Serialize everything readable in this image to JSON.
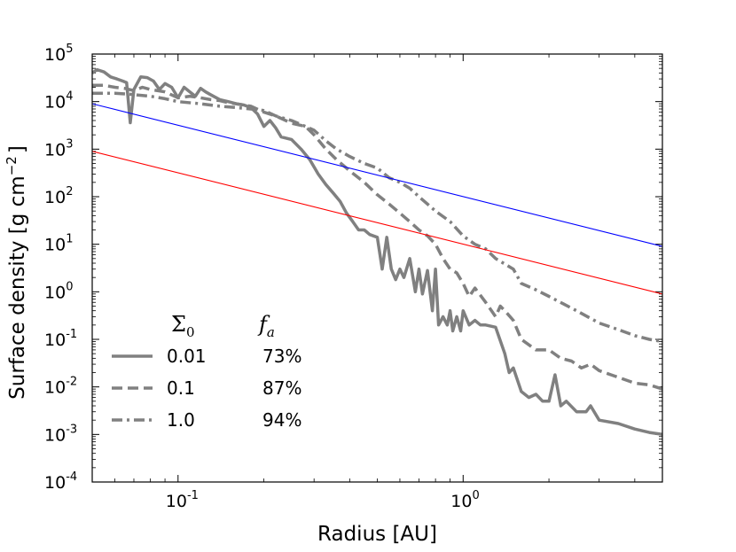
{
  "chart_data": {
    "type": "line",
    "xlabel": "Radius [AU]",
    "ylabel": "Surface density [g cm",
    "ylabel_sup": "−2",
    "ylabel_end": "]",
    "xscale": "log",
    "yscale": "log",
    "xlim": [
      0.05,
      5.0
    ],
    "ylim": [
      0.0001,
      100000
    ],
    "xticks": [
      {
        "value": 0.1,
        "base": "10",
        "exp": "-1"
      },
      {
        "value": 1.0,
        "base": "10",
        "exp": "0"
      }
    ],
    "yticks": [
      {
        "value": 100000,
        "base": "10",
        "exp": "5"
      },
      {
        "value": 10000,
        "base": "10",
        "exp": "4"
      },
      {
        "value": 1000,
        "base": "10",
        "exp": "3"
      },
      {
        "value": 100,
        "base": "10",
        "exp": "2"
      },
      {
        "value": 10,
        "base": "10",
        "exp": "1"
      },
      {
        "value": 1,
        "base": "10",
        "exp": "0"
      },
      {
        "value": 0.1,
        "base": "10",
        "exp": "-1"
      },
      {
        "value": 0.01,
        "base": "10",
        "exp": "-2"
      },
      {
        "value": 0.001,
        "base": "10",
        "exp": "-3"
      },
      {
        "value": 0.0001,
        "base": "10",
        "exp": "-4"
      }
    ],
    "legend": {
      "placement": "lower-left",
      "head_sigma": "Σ",
      "head_sigma_sub": "0",
      "head_f": "f",
      "head_f_sub": "a"
    },
    "series": [
      {
        "label": "0.01",
        "fa": "73%",
        "style": "solid",
        "color": "#808080",
        "points": [
          [
            0.05,
            40000
          ],
          [
            0.052,
            47000
          ],
          [
            0.055,
            42000
          ],
          [
            0.058,
            33000
          ],
          [
            0.061,
            30000
          ],
          [
            0.064,
            27000
          ],
          [
            0.066,
            25000
          ],
          [
            0.068,
            3600
          ],
          [
            0.07,
            18000
          ],
          [
            0.074,
            33000
          ],
          [
            0.078,
            32000
          ],
          [
            0.082,
            27000
          ],
          [
            0.086,
            18000
          ],
          [
            0.09,
            24000
          ],
          [
            0.095,
            20000
          ],
          [
            0.1,
            12000
          ],
          [
            0.105,
            20000
          ],
          [
            0.11,
            16000
          ],
          [
            0.115,
            13000
          ],
          [
            0.12,
            19000
          ],
          [
            0.125,
            16000
          ],
          [
            0.13,
            14000
          ],
          [
            0.14,
            11000
          ],
          [
            0.15,
            10000
          ],
          [
            0.16,
            9000
          ],
          [
            0.17,
            8500
          ],
          [
            0.18,
            7500
          ],
          [
            0.19,
            5500
          ],
          [
            0.2,
            3000
          ],
          [
            0.21,
            4000
          ],
          [
            0.22,
            2800
          ],
          [
            0.23,
            1800
          ],
          [
            0.25,
            1600
          ],
          [
            0.27,
            1000
          ],
          [
            0.29,
            600
          ],
          [
            0.31,
            300
          ],
          [
            0.33,
            180
          ],
          [
            0.35,
            120
          ],
          [
            0.37,
            80
          ],
          [
            0.39,
            45
          ],
          [
            0.41,
            30
          ],
          [
            0.43,
            20
          ],
          [
            0.45,
            20
          ],
          [
            0.47,
            16
          ],
          [
            0.5,
            14
          ],
          [
            0.52,
            3
          ],
          [
            0.54,
            14
          ],
          [
            0.56,
            3
          ],
          [
            0.58,
            1.8
          ],
          [
            0.6,
            3
          ],
          [
            0.62,
            2
          ],
          [
            0.65,
            5
          ],
          [
            0.68,
            1
          ],
          [
            0.7,
            3
          ],
          [
            0.72,
            0.9
          ],
          [
            0.75,
            2.8
          ],
          [
            0.78,
            0.4
          ],
          [
            0.8,
            3
          ],
          [
            0.82,
            0.2
          ],
          [
            0.85,
            0.3
          ],
          [
            0.88,
            0.2
          ],
          [
            0.9,
            0.4
          ],
          [
            0.92,
            0.15
          ],
          [
            0.95,
            0.3
          ],
          [
            0.98,
            0.15
          ],
          [
            1.0,
            0.4
          ],
          [
            1.05,
            0.2
          ],
          [
            1.1,
            0.25
          ],
          [
            1.15,
            0.2
          ],
          [
            1.2,
            0.2
          ],
          [
            1.3,
            0.18
          ],
          [
            1.4,
            0.05
          ],
          [
            1.45,
            0.02
          ],
          [
            1.5,
            0.025
          ],
          [
            1.6,
            0.008
          ],
          [
            1.7,
            0.006
          ],
          [
            1.8,
            0.007
          ],
          [
            1.9,
            0.005
          ],
          [
            2.0,
            0.005
          ],
          [
            2.1,
            0.018
          ],
          [
            2.2,
            0.004
          ],
          [
            2.3,
            0.005
          ],
          [
            2.5,
            0.003
          ],
          [
            2.7,
            0.003
          ],
          [
            2.8,
            0.004
          ],
          [
            3.0,
            0.002
          ],
          [
            3.5,
            0.0017
          ],
          [
            4.0,
            0.0013
          ],
          [
            4.5,
            0.0011
          ],
          [
            5.0,
            0.001
          ]
        ]
      },
      {
        "label": "0.1",
        "fa": "87%",
        "style": "dashed",
        "color": "#808080",
        "points": [
          [
            0.05,
            22000
          ],
          [
            0.055,
            22000
          ],
          [
            0.06,
            20000
          ],
          [
            0.065,
            19000
          ],
          [
            0.07,
            17000
          ],
          [
            0.075,
            20000
          ],
          [
            0.08,
            18000
          ],
          [
            0.09,
            16000
          ],
          [
            0.1,
            12000
          ],
          [
            0.11,
            13000
          ],
          [
            0.12,
            12000
          ],
          [
            0.13,
            11000
          ],
          [
            0.14,
            10500
          ],
          [
            0.15,
            9500
          ],
          [
            0.16,
            9000
          ],
          [
            0.18,
            8000
          ],
          [
            0.2,
            6000
          ],
          [
            0.22,
            5000
          ],
          [
            0.25,
            3500
          ],
          [
            0.28,
            3000
          ],
          [
            0.3,
            2000
          ],
          [
            0.33,
            1000
          ],
          [
            0.36,
            600
          ],
          [
            0.4,
            350
          ],
          [
            0.45,
            200
          ],
          [
            0.5,
            110
          ],
          [
            0.55,
            70
          ],
          [
            0.6,
            45
          ],
          [
            0.65,
            30
          ],
          [
            0.7,
            20
          ],
          [
            0.75,
            15
          ],
          [
            0.8,
            10
          ],
          [
            0.85,
            5
          ],
          [
            0.9,
            3
          ],
          [
            0.95,
            2.5
          ],
          [
            1.0,
            1.5
          ],
          [
            1.05,
            0.8
          ],
          [
            1.1,
            1.2
          ],
          [
            1.2,
            0.6
          ],
          [
            1.3,
            0.3
          ],
          [
            1.35,
            0.5
          ],
          [
            1.4,
            0.4
          ],
          [
            1.5,
            0.25
          ],
          [
            1.6,
            0.1
          ],
          [
            1.8,
            0.06
          ],
          [
            2.0,
            0.06
          ],
          [
            2.2,
            0.04
          ],
          [
            2.4,
            0.035
          ],
          [
            2.6,
            0.025
          ],
          [
            2.8,
            0.03
          ],
          [
            3.0,
            0.022
          ],
          [
            3.3,
            0.018
          ],
          [
            3.6,
            0.015
          ],
          [
            4.0,
            0.012
          ],
          [
            4.5,
            0.011
          ],
          [
            5.0,
            0.009
          ]
        ]
      },
      {
        "label": "1.0",
        "fa": "94%",
        "style": "dashdot",
        "color": "#808080",
        "points": [
          [
            0.05,
            15000
          ],
          [
            0.06,
            15000
          ],
          [
            0.07,
            14000
          ],
          [
            0.08,
            13000
          ],
          [
            0.09,
            11500
          ],
          [
            0.1,
            10000
          ],
          [
            0.12,
            9000
          ],
          [
            0.14,
            8000
          ],
          [
            0.16,
            7500
          ],
          [
            0.18,
            7000
          ],
          [
            0.2,
            6500
          ],
          [
            0.22,
            5000
          ],
          [
            0.25,
            4000
          ],
          [
            0.28,
            3000
          ],
          [
            0.3,
            2500
          ],
          [
            0.33,
            1500
          ],
          [
            0.36,
            1000
          ],
          [
            0.4,
            700
          ],
          [
            0.45,
            500
          ],
          [
            0.5,
            400
          ],
          [
            0.55,
            250
          ],
          [
            0.6,
            200
          ],
          [
            0.65,
            150
          ],
          [
            0.7,
            100
          ],
          [
            0.75,
            70
          ],
          [
            0.8,
            50
          ],
          [
            0.9,
            30
          ],
          [
            1.0,
            15
          ],
          [
            1.1,
            10
          ],
          [
            1.2,
            8
          ],
          [
            1.3,
            5
          ],
          [
            1.5,
            3
          ],
          [
            1.6,
            1.5
          ],
          [
            1.8,
            1.1
          ],
          [
            2.0,
            0.8
          ],
          [
            2.5,
            0.4
          ],
          [
            3.0,
            0.22
          ],
          [
            3.5,
            0.16
          ],
          [
            4.0,
            0.12
          ],
          [
            4.5,
            0.1
          ],
          [
            5.0,
            0.09
          ]
        ]
      },
      {
        "label": "",
        "style": "solid-thin",
        "color": "#0000ff",
        "points": [
          [
            0.05,
            9000
          ],
          [
            5.0,
            9
          ]
        ]
      },
      {
        "label": "",
        "style": "solid-thin",
        "color": "#ff0000",
        "points": [
          [
            0.05,
            900
          ],
          [
            5.0,
            0.9
          ]
        ]
      }
    ]
  }
}
